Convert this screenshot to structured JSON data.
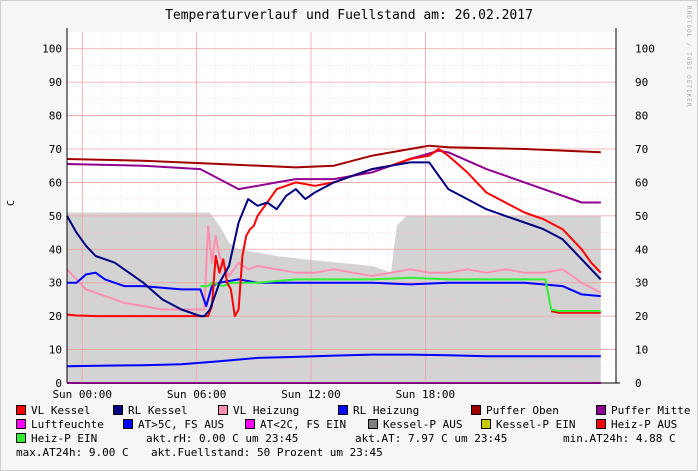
{
  "chart_data": {
    "type": "line",
    "title": "Temperaturverlauf und Fuellstand am: 26.02.2017",
    "watermark": "RRDTOOL / TOBI OETIKER",
    "ylabel": "C",
    "ylim": [
      0,
      105
    ],
    "yticks": [
      0,
      10,
      20,
      30,
      40,
      50,
      60,
      70,
      80,
      90,
      100
    ],
    "xlim": [
      0,
      28.8
    ],
    "xticks": [
      {
        "label": "Sun 00:00",
        "value": 0.8
      },
      {
        "label": "Sun 06:00",
        "value": 6.8
      },
      {
        "label": "Sun 12:00",
        "value": 12.8
      },
      {
        "label": "Sun 18:00",
        "value": 18.8
      }
    ],
    "colors": {
      "vl_kessel": "#ff0000",
      "rl_kessel": "#000080",
      "vl_heizung": "#ff8fb0",
      "rl_heizung": "#0000ff",
      "puffer_oben": "#a00000",
      "puffer_mitte": "#900090",
      "luftfeuchte": "#ff00ff",
      "at_gt5c": "#0000ff",
      "at_lt2c": "#ff00ff",
      "kessel_p_aus": "#808080",
      "kessel_p_ein": "#c8c800",
      "heiz_p_aus": "#ff0000",
      "heiz_p_ein": "#33ee33",
      "area": "#d3d3d3"
    },
    "series": [
      {
        "name": "Fuellstand",
        "type": "area",
        "x": [
          0,
          7.5,
          8.0,
          8.5,
          9.0,
          11.0,
          12.5,
          16.0,
          17.0,
          17.3,
          17.8,
          24.0,
          28.0
        ],
        "y": [
          51,
          51,
          47,
          42,
          40,
          38,
          37,
          35,
          33,
          47,
          50,
          50,
          50
        ]
      },
      {
        "name": "VL Kessel",
        "x": [
          0,
          0.5,
          1.0,
          1.5,
          2.0,
          3.0,
          4.0,
          5.0,
          6.0,
          7.0,
          7.4,
          7.6,
          7.8,
          8.0,
          8.2,
          8.4,
          8.6,
          8.8,
          9.0,
          9.2,
          9.4,
          9.6,
          9.8,
          10.0,
          10.5,
          11.0,
          12.0,
          13.0,
          14.0,
          15.0,
          16.0,
          17.0,
          18.0,
          19.0,
          19.5,
          20.0,
          21.0,
          22.0,
          23.0,
          24.0,
          25.0,
          26.0,
          26.5,
          27.0,
          27.5,
          28.0
        ],
        "y": [
          20.5,
          20.2,
          20.1,
          20.0,
          20.0,
          20.0,
          20.0,
          20.0,
          20.0,
          20.0,
          20.0,
          23,
          38,
          33,
          37,
          30,
          28,
          20,
          22,
          38,
          44,
          46,
          47,
          50,
          54,
          58,
          60,
          59,
          60,
          62,
          64,
          65,
          67,
          68,
          70,
          68,
          63,
          57,
          54,
          51,
          49,
          46,
          43,
          40,
          36,
          33
        ]
      },
      {
        "name": "RL Kessel",
        "x": [
          0,
          0.5,
          1.0,
          1.5,
          2.0,
          2.5,
          3.0,
          4.0,
          5.0,
          6.0,
          7.0,
          7.2,
          7.5,
          8.0,
          8.5,
          9.0,
          9.5,
          10.0,
          10.5,
          11.0,
          11.5,
          12.0,
          12.5,
          13.0,
          14.0,
          15.0,
          16.0,
          17.0,
          18.0,
          19.0,
          19.5,
          20.0,
          21.0,
          22.0,
          23.0,
          24.0,
          25.0,
          26.0,
          27.0,
          28.0
        ],
        "y": [
          50,
          45,
          41,
          38,
          37,
          36,
          34,
          30,
          25,
          22,
          20,
          20,
          22,
          30,
          35,
          48,
          55,
          53,
          54,
          52,
          56,
          58,
          55,
          57,
          60,
          62,
          64,
          65,
          66,
          66,
          62,
          58,
          55,
          52,
          50,
          48,
          46,
          43,
          37,
          31
        ]
      },
      {
        "name": "VL Heizung",
        "x": [
          0,
          1,
          2,
          3,
          4,
          5,
          6,
          7,
          7.2,
          7.4,
          7.6,
          7.8,
          8.0,
          8.5,
          9.0,
          9.5,
          10.0,
          11.0,
          12.0,
          13.0,
          14.0,
          15.0,
          16.0,
          17.0,
          18.0,
          19.0,
          20.0,
          21.0,
          22.0,
          23.0,
          24.0,
          25.0,
          26.0,
          27.0,
          28.0
        ],
        "y": [
          34,
          28,
          26,
          24,
          23,
          22,
          22,
          22,
          22,
          47,
          36,
          44,
          38,
          32,
          36,
          34,
          35,
          34,
          33,
          33,
          34,
          33,
          32,
          33,
          34,
          33,
          33,
          34,
          33,
          34,
          33,
          33,
          34,
          30,
          27
        ]
      },
      {
        "name": "RL Heizung",
        "x": [
          0,
          0.5,
          1.0,
          1.5,
          2.0,
          3.0,
          4.0,
          5.0,
          6.0,
          7.0,
          7.3,
          7.6,
          8.0,
          9.0,
          10.0,
          12.0,
          14.0,
          16.0,
          18.0,
          20.0,
          22.0,
          24.0,
          26.0,
          27.0,
          28.0
        ],
        "y": [
          30,
          30,
          32.5,
          33,
          31,
          29,
          29,
          28.5,
          28,
          28,
          23,
          29,
          30,
          31,
          30,
          30,
          30,
          30,
          29.5,
          30,
          30,
          30,
          29,
          26.5,
          26
        ]
      },
      {
        "name": "Puffer Oben",
        "x": [
          0,
          4,
          8,
          12,
          14,
          16,
          18,
          19,
          20,
          24,
          28
        ],
        "y": [
          67,
          66.5,
          65.5,
          64.5,
          65,
          68,
          70,
          71,
          70.5,
          70,
          69
        ]
      },
      {
        "name": "Puffer Mitte",
        "x": [
          0,
          4,
          7,
          8,
          9,
          10,
          11,
          12,
          13,
          14,
          16,
          18,
          19.5,
          20,
          22,
          24,
          26,
          27,
          28
        ],
        "y": [
          65.5,
          65,
          64,
          61,
          58,
          59,
          60,
          61,
          61,
          61,
          63,
          67,
          69.5,
          69,
          64,
          60,
          56,
          54,
          54
        ]
      },
      {
        "name": "AT>5C, FS AUS",
        "x": [
          0,
          2,
          4,
          6,
          8,
          10,
          12,
          14,
          16,
          18,
          20,
          22,
          24,
          26,
          28
        ],
        "y": [
          5,
          5.2,
          5.3,
          5.6,
          6.5,
          7.5,
          7.8,
          8.2,
          8.5,
          8.5,
          8.3,
          8.0,
          8.0,
          8.0,
          8.0
        ]
      },
      {
        "name": "Luftfeuchte",
        "x": [
          0,
          28
        ],
        "y": [
          0,
          0
        ]
      },
      {
        "name": "Heiz-P EIN",
        "x": [
          7.0,
          7.4,
          7.6,
          8.2,
          8.6,
          9.0,
          10.0,
          12.0,
          14.0,
          16.0,
          18.0,
          20.0,
          22.0,
          24.0,
          25.0,
          25.1,
          25.4,
          25.8,
          28.0
        ],
        "y": [
          29,
          29,
          30,
          29,
          30,
          30,
          30,
          31,
          31,
          31,
          31.5,
          31,
          31,
          31,
          31,
          31,
          22,
          21.5,
          21.5
        ]
      },
      {
        "name": "Heiz-P AUS",
        "x": [
          25.4,
          25.8,
          28.0
        ],
        "y": [
          21.5,
          21,
          21
        ]
      }
    ],
    "legend": [
      {
        "label": "VL Kessel",
        "color": "#ff0000"
      },
      {
        "label": "RL Kessel",
        "color": "#000080"
      },
      {
        "label": "VL Heizung",
        "color": "#ff8fb0"
      },
      {
        "label": "RL Heizung",
        "color": "#0000ff"
      },
      {
        "label": "Puffer Oben",
        "color": "#a00000"
      },
      {
        "label": "Puffer Mitte",
        "color": "#900090"
      },
      {
        "label": "Luftfeuchte",
        "color": "#ff00ff"
      },
      {
        "label": "AT>5C, FS AUS",
        "color": "#0000ff"
      },
      {
        "label": "AT<2C, FS EIN",
        "color": "#ff00ff"
      },
      {
        "label": "Kessel-P AUS",
        "color": "#808080"
      },
      {
        "label": "Kessel-P EIN",
        "color": "#c8c800"
      },
      {
        "label": "Heiz-P AUS",
        "color": "#ff0000"
      },
      {
        "label": "Heiz-P EIN",
        "color": "#33ee33"
      }
    ],
    "info": {
      "akt_rh": "akt.rH: 0.00 C um 23:45",
      "akt_at": "akt.AT: 7.97 C um 23:45",
      "min_at24h": "min.AT24h: 4.88 C",
      "max_at24h": "max.AT24h: 9.00 C",
      "fuellstand": "akt.Fuellstand:   50 Prozent um 23:45"
    }
  }
}
